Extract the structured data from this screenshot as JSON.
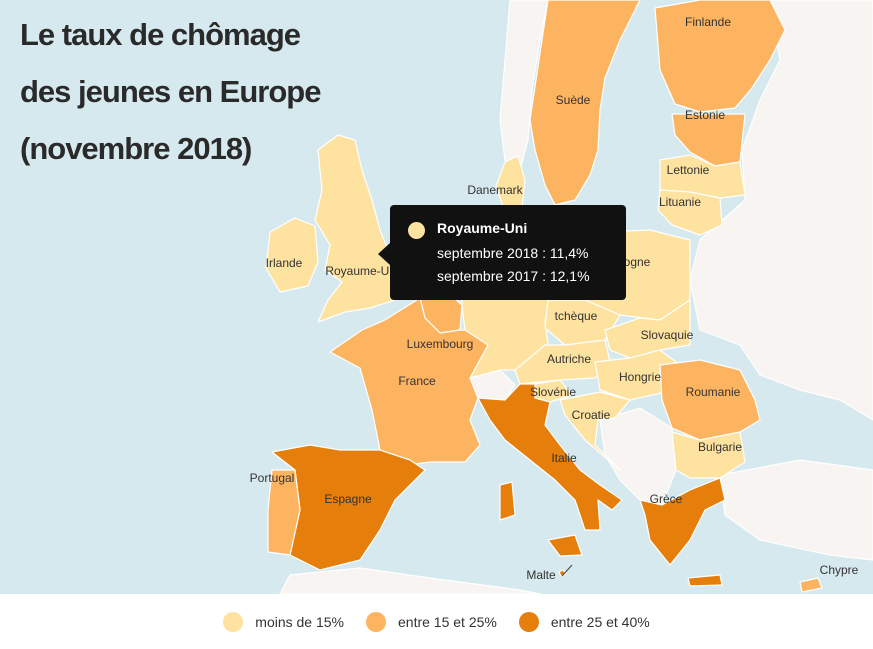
{
  "title": {
    "line1": "Le taux de chômage",
    "line2": "des jeunes en Europe",
    "line3": "(novembre 2018)"
  },
  "colors": {
    "sea": "#d6e9ee",
    "low": "#fee2a0",
    "mid": "#fdb461",
    "high": "#e57e0a",
    "nodata": "#f7f4f1"
  },
  "labels": {
    "finlande": "Finlande",
    "suede": "Suède",
    "estonie": "Estonie",
    "lettonie": "Lettonie",
    "lituanie": "Lituanie",
    "danemark": "Danemark",
    "irlande": "Irlande",
    "royaume_uni": "Royaume-Uni",
    "pologne": "ogne",
    "tcheque": "tchèque",
    "slovaquie": "Slovaquie",
    "luxembourg": "Luxembourg",
    "autriche": "Autriche",
    "france": "France",
    "hongrie": "Hongrie",
    "roumanie": "Roumanie",
    "slovenie": "Slovénie",
    "croatie": "Croatie",
    "bulgarie": "Bulgarie",
    "italie": "Italie",
    "portugal": "Portugal",
    "espagne": "Espagne",
    "grece": "Grèce",
    "malte": "Malte",
    "chypre": "Chypre"
  },
  "tooltip": {
    "country": "Royaume-Uni",
    "line1": "septembre 2018 : 11,4%",
    "line2": "septembre 2017 : 12,1%"
  },
  "legend": [
    {
      "label": "moins de 15%",
      "color": "#fee2a0"
    },
    {
      "label": "entre 15 et 25%",
      "color": "#fdb461"
    },
    {
      "label": "entre 25 et 40%",
      "color": "#e57e0a"
    }
  ]
}
